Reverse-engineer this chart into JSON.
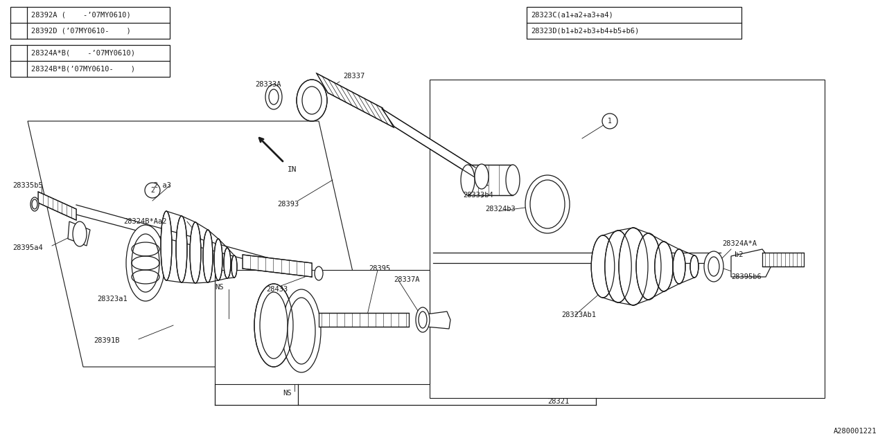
{
  "bg_color": "#ffffff",
  "line_color": "#1a1a1a",
  "fig_width": 12.8,
  "fig_height": 6.4,
  "watermark": "A280001221",
  "legend_box1_rows": [
    "28392A (    -’07MY0610)",
    "28392D (’07MY0610-    )"
  ],
  "legend_box2_rows": [
    "28324A*B(    -’07MY0610)",
    "28324B*B(’07MY0610-    )"
  ],
  "legend_box3_rows": [
    "28323C(a1+a2+a3+a4)",
    "28323D(b1+b2+b3+b4+b5+b6)"
  ]
}
